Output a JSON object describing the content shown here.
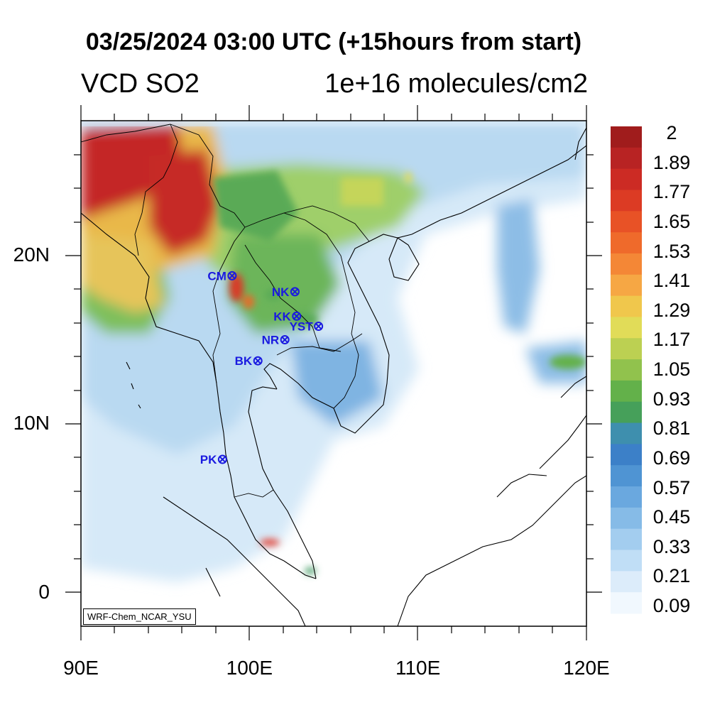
{
  "title": "03/25/2024 03:00 UTC (+15hours from start)",
  "variable": "VCD SO2",
  "unit": "1e+16 molecules/cm2",
  "model_label": "WRF-Chem_NCAR_YSU",
  "lat_labels": [
    {
      "lat": 20,
      "text": "20N"
    },
    {
      "lat": 10,
      "text": "10N"
    },
    {
      "lat": 0,
      "text": "0"
    }
  ],
  "lon_labels": [
    {
      "lon": 90,
      "text": "90E"
    },
    {
      "lon": 100,
      "text": "100E"
    },
    {
      "lon": 110,
      "text": "110E"
    },
    {
      "lon": 120,
      "text": "120E"
    }
  ],
  "colorbar": {
    "labels": [
      "2",
      "1.89",
      "1.77",
      "1.65",
      "1.53",
      "1.41",
      "1.29",
      "1.17",
      "1.05",
      "0.93",
      "0.81",
      "0.69",
      "0.57",
      "0.45",
      "0.33",
      "0.21",
      "0.09"
    ],
    "colors": [
      "#a01c1c",
      "#b82323",
      "#cc2b24",
      "#dc3b24",
      "#e85226",
      "#ef6a2b",
      "#f48736",
      "#f6a744",
      "#f0c74c",
      "#e1dc58",
      "#bcd052",
      "#91c24d",
      "#63b14a",
      "#46a05a",
      "#3e8fae",
      "#3c80c8",
      "#4f94d3",
      "#6aa8df",
      "#86bbe7",
      "#a3cdef",
      "#c0def6",
      "#dcecfa",
      "#f1f8fe"
    ]
  },
  "stations": [
    {
      "code": "CM",
      "lon": 98.97,
      "lat": 18.8
    },
    {
      "code": "NK",
      "lon": 102.7,
      "lat": 17.85
    },
    {
      "code": "KK",
      "lon": 102.8,
      "lat": 16.4
    },
    {
      "code": "YST",
      "lon": 104.1,
      "lat": 15.8
    },
    {
      "code": "NR",
      "lon": 102.1,
      "lat": 15.0
    },
    {
      "code": "BK",
      "lon": 100.5,
      "lat": 13.75
    },
    {
      "code": "PK",
      "lon": 98.4,
      "lat": 7.9
    }
  ]
}
